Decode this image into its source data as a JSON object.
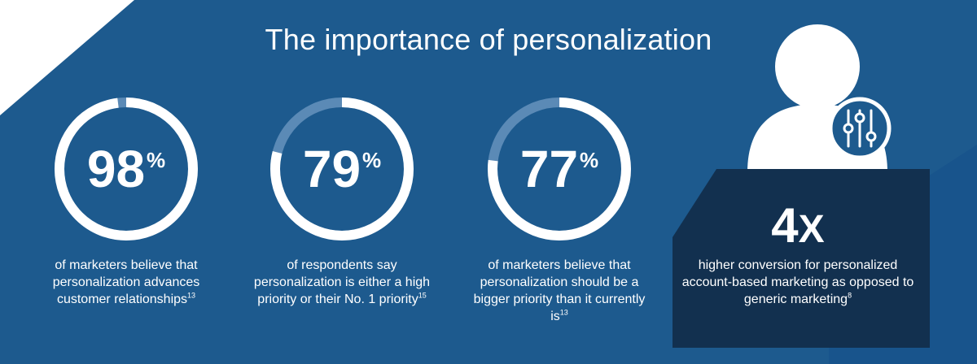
{
  "title": "The importance of personalization",
  "colors": {
    "background_blue": "#1d5a8e",
    "ring_light": "#5b8ab6",
    "dark_box": "#12304f",
    "white": "#ffffff"
  },
  "stats": [
    {
      "value_num": "98",
      "value_unit": "%",
      "fraction": 0.98,
      "caption": "of marketers believe that personalization advances customer relationships",
      "footnote": "13"
    },
    {
      "value_num": "79",
      "value_unit": "%",
      "fraction": 0.79,
      "caption": "of respondents say personalization is either a high priority or their No. 1 priority",
      "footnote": "15"
    },
    {
      "value_num": "77",
      "value_unit": "%",
      "fraction": 0.77,
      "caption": "of marketers believe that personalization should be a bigger priority than it currently is",
      "footnote": "13"
    }
  ],
  "highlight": {
    "value_num": "4",
    "value_unit": "X",
    "caption": "higher conversion for personalized account-based marketing as opposed to generic marketing",
    "footnote": "8"
  },
  "icons": [
    "person-icon",
    "sliders-icon"
  ]
}
